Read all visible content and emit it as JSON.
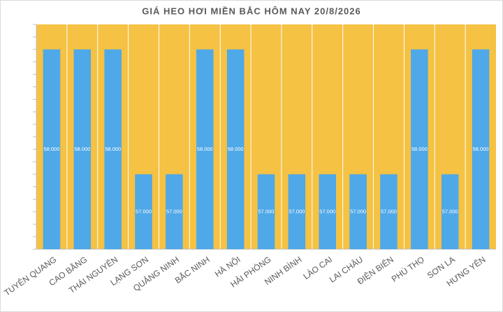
{
  "chart_data": {
    "type": "bar",
    "title": "GIÁ HEO HƠI MIỀN BẮC HÔM NAY 20/8/2026",
    "categories": [
      "TUYÊN QUANG",
      "CAO BẰNG",
      "THÁI NGUYÊN",
      "LẠNG SƠN",
      "QUẢNG NINH",
      "BẮC NINH",
      "HÀ NỘI",
      "HẢI PHÒNG",
      "NINH BÌNH",
      "LÀO CAI",
      "LAI CHÂU",
      "ĐIỆN BIÊN",
      "PHÚ THỌ",
      "SƠN LA",
      "HƯNG YÊN"
    ],
    "values": [
      58000,
      58000,
      58000,
      57000,
      57000,
      58000,
      58000,
      57000,
      57000,
      57000,
      57000,
      57000,
      58000,
      57000,
      58000
    ],
    "value_labels": [
      "58.000",
      "58.000",
      "58.000",
      "57.000",
      "57.000",
      "58.000",
      "58.000",
      "57.000",
      "57.000",
      "57.000",
      "57.000",
      "57.000",
      "58.000",
      "57.000",
      "58.000"
    ],
    "color": "#4fa8e8",
    "background": "#f5c243",
    "ylim": [
      56400,
      58200
    ],
    "yticks": [
      56400,
      56500,
      56600,
      56700,
      56800,
      56900,
      57000,
      57100,
      57200,
      57300,
      57400,
      57500,
      57600,
      57700,
      57800,
      57900,
      58000,
      58100,
      58200
    ]
  }
}
